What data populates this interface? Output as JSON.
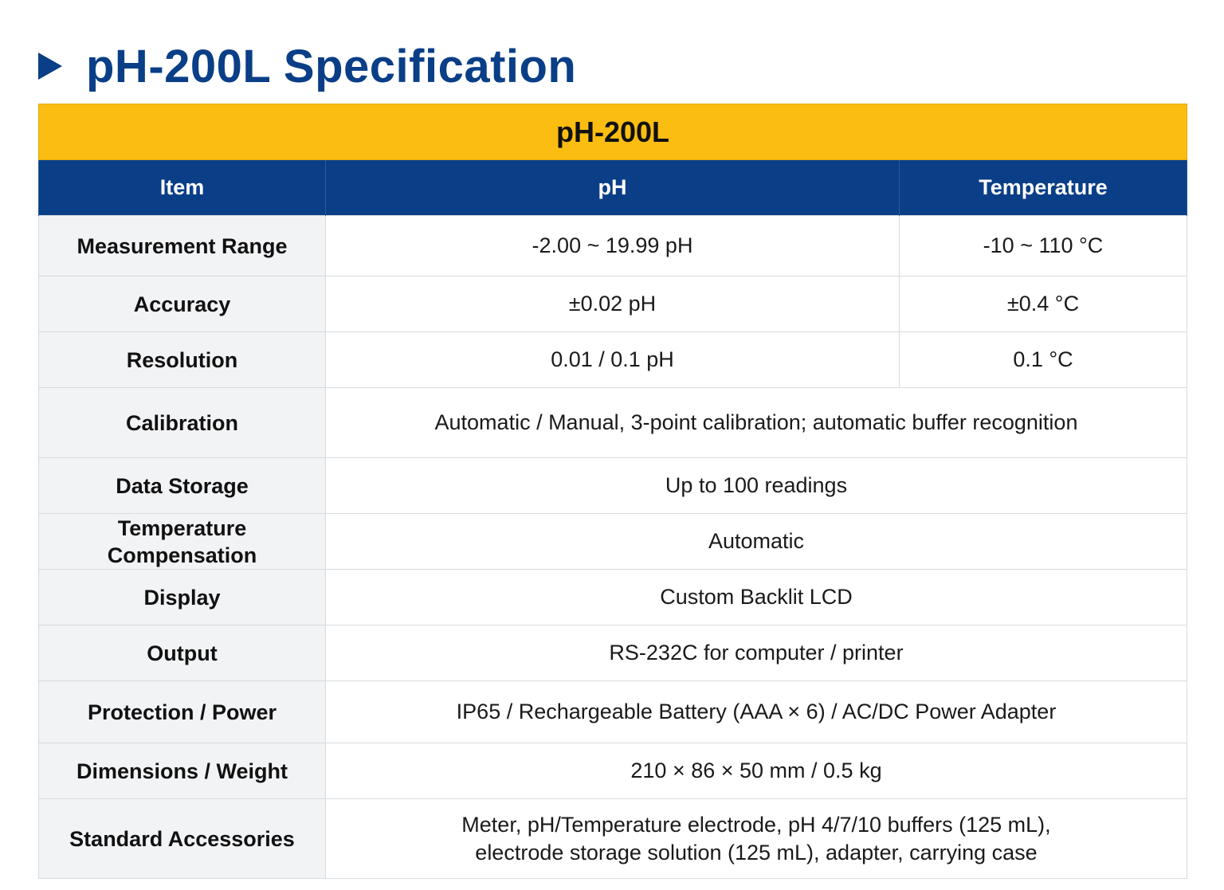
{
  "page_title": "pH-200L Specification",
  "model": "pH-200L",
  "headers": {
    "item": "Item",
    "ph": "pH",
    "temperature": "Temperature"
  },
  "rows": {
    "measurement_range": {
      "label": "Measurement Range",
      "ph": "-2.00 ~ 19.99 pH",
      "temperature": "-10 ~ 110 °C"
    },
    "accuracy": {
      "label": "Accuracy",
      "ph": "±0.02 pH",
      "temperature": "±0.4 °C"
    },
    "resolution": {
      "label": "Resolution",
      "ph": "0.01 / 0.1 pH",
      "temperature": "0.1 °C"
    },
    "calibration": {
      "label": "Calibration",
      "value": "Automatic / Manual, 3-point calibration; automatic buffer recognition"
    },
    "data_storage": {
      "label": "Data Storage",
      "value": "Up to 100 readings"
    },
    "temperature_compensation": {
      "label_line1": "Temperature",
      "label_line2": "Compensation",
      "value": "Automatic"
    },
    "display": {
      "label": "Display",
      "value": "Custom Backlit LCD"
    },
    "output": {
      "label": "Output",
      "value": "RS-232C for computer / printer"
    },
    "protection_power": {
      "label": "Protection / Power",
      "value": "IP65 / Rechargeable Battery (AAA × 6) / AC/DC Power Adapter"
    },
    "dimensions_weight": {
      "label": "Dimensions / Weight",
      "value": "210 × 86 × 50 mm / 0.5 kg"
    },
    "standard_accessories": {
      "label": "Standard Accessories",
      "value_line1": "Meter, pH/Temperature electrode, pH 4/7/10 buffers (125 mL),",
      "value_line2": "electrode storage solution (125 mL), adapter, carrying case"
    }
  },
  "colors": {
    "title_blue": "#0a3e87",
    "model_bar_yellow": "#fbbd12",
    "header_blue": "#0a3e87",
    "item_cell_gray": "#f2f3f5",
    "border": "#d7dbe0"
  },
  "icons": {
    "title_marker": "triangle-right-icon"
  }
}
